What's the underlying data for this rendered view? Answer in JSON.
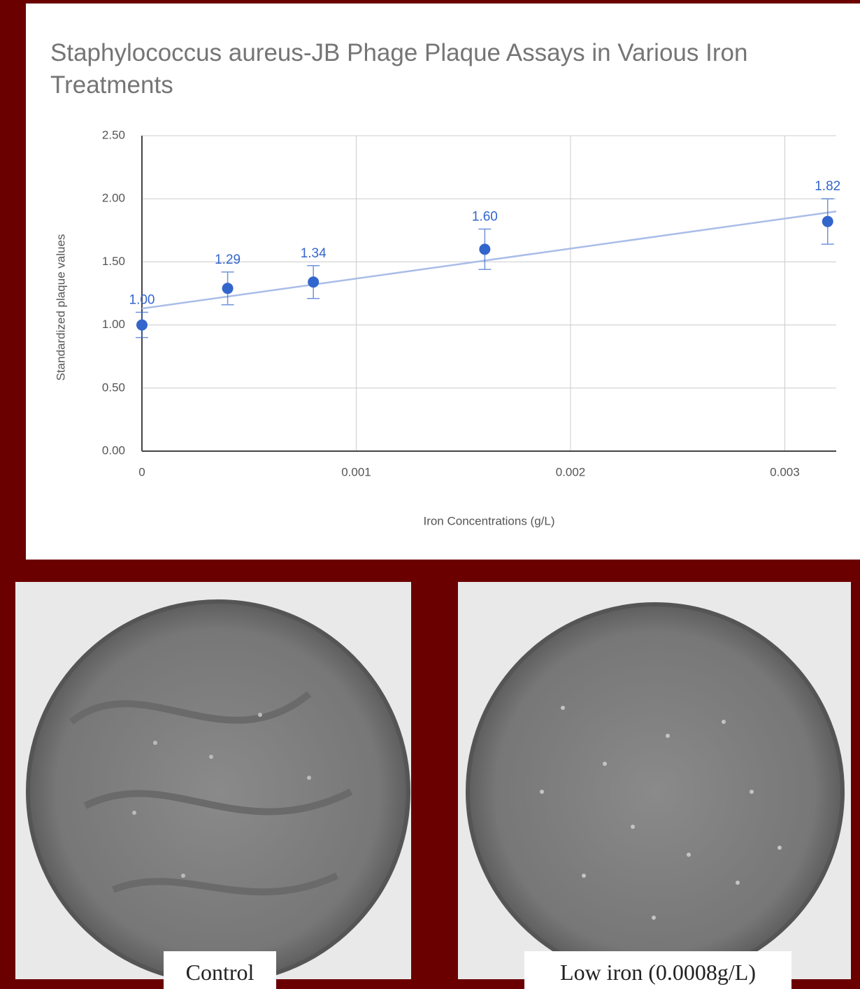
{
  "chart_data": {
    "type": "scatter",
    "title": "Staphylococcus aureus-JB Phage Plaque Assays in Various Iron Treatments",
    "x_label": "Iron Concentrations (g/L)",
    "y_label": "Standardized plaque values",
    "x": [
      0,
      0.0004,
      0.0008,
      0.0016,
      0.0032
    ],
    "values": [
      1.0,
      1.29,
      1.34,
      1.6,
      1.82
    ],
    "value_labels": [
      "1.00",
      "1.29",
      "1.34",
      "1.60",
      "1.82"
    ],
    "errors": [
      0.1,
      0.13,
      0.13,
      0.16,
      0.18
    ],
    "color": "#3366cc",
    "trendline": {
      "x": [
        0,
        0.00324
      ],
      "values": [
        1.13,
        1.9
      ],
      "color": "#a9bde8"
    },
    "xlim": [
      0,
      0.00324
    ],
    "ylim": [
      0,
      2.5
    ],
    "xticks": [
      0,
      0.001,
      0.002,
      0.003
    ],
    "yticks": [
      {
        "value": 0,
        "label": "0.00"
      },
      {
        "value": 0.5,
        "label": "0.50"
      },
      {
        "value": 1,
        "label": "1.00"
      },
      {
        "value": 1.5,
        "label": "1.50"
      },
      {
        "value": 2,
        "label": "2.00"
      },
      {
        "value": 2.5,
        "label": "2.50"
      }
    ],
    "grid": true
  },
  "photos": [
    {
      "caption": "Control"
    },
    {
      "caption": "Low iron (0.0008g/L)"
    }
  ]
}
